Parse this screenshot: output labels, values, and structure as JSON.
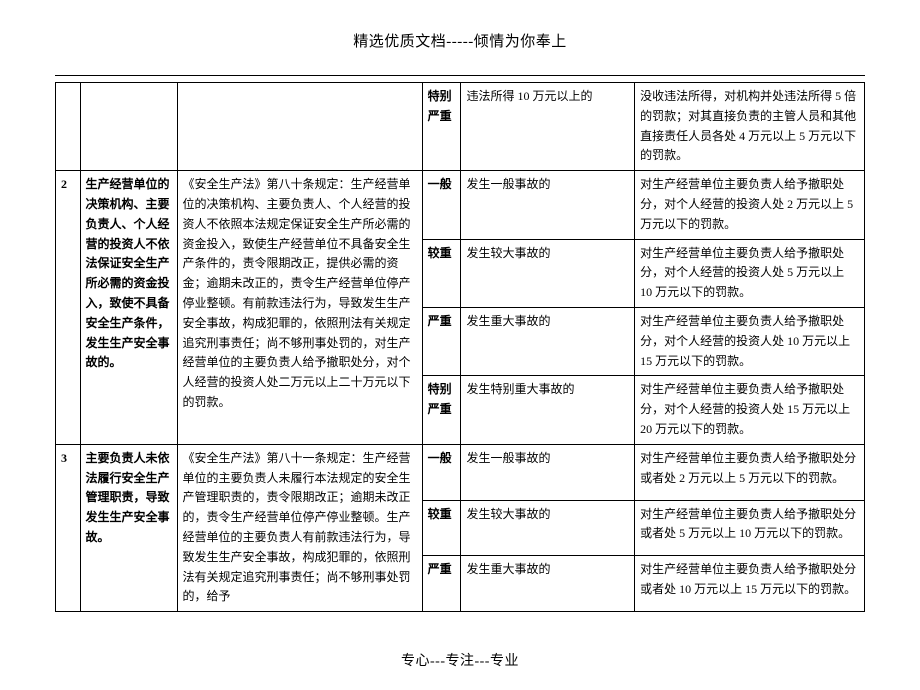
{
  "header": "精选优质文档-----倾情为你奉上",
  "footer": "专心---专注---专业",
  "table": {
    "row1": {
      "level": "特别严重",
      "cond": "违法所得 10 万元以上的",
      "res": "没收违法所得，对机构并处违法所得 5 倍的罚款；对其直接负责的主管人员和其他直接责任人员各处 4 万元以上 5 万元以下的罚款。"
    },
    "group2": {
      "idx": "2",
      "item": "生产经营单位的决策机构、主要负责人、个人经营的投资人不依法保证安全生产所必需的资金投入，致使不具备安全生产条件，发生生产安全事故的。",
      "desc": "《安全生产法》第八十条规定：生产经营单位的决策机构、主要负责人、个人经营的投资人不依照本法规定保证安全生产所必需的资金投入，致使生产经营单位不具备安全生产条件的，责令限期改正，提供必需的资金；逾期未改正的，责令生产经营单位停产停业整顿。有前款违法行为，导致发生生产安全事故，构成犯罪的，依照刑法有关规定追究刑事责任；尚不够刑事处罚的，对生产经营单位的主要负责人给予撤职处分，对个人经营的投资人处二万元以上二十万元以下的罚款。",
      "r1": {
        "level": "一般",
        "cond": "发生一般事故的",
        "res": "对生产经营单位主要负责人给予撤职处分，对个人经营的投资人处 2 万元以上 5 万元以下的罚款。"
      },
      "r2": {
        "level": "较重",
        "cond": "发生较大事故的",
        "res": "对生产经营单位主要负责人给予撤职处分，对个人经营的投资人处 5 万元以上 10 万元以下的罚款。"
      },
      "r3": {
        "level": "严重",
        "cond": "发生重大事故的",
        "res": "对生产经营单位主要负责人给予撤职处分，对个人经营的投资人处 10 万元以上 15 万元以下的罚款。"
      },
      "r4": {
        "level": "特别严重",
        "cond": "发生特别重大事故的",
        "res": "对生产经营单位主要负责人给予撤职处分，对个人经营的投资人处 15 万元以上 20 万元以下的罚款。"
      }
    },
    "group3": {
      "idx": "3",
      "item": "主要负责人未依法履行安全生产管理职责，导致发生生产安全事故。",
      "desc": "《安全生产法》第八十一条规定：生产经营单位的主要负责人未履行本法规定的安全生产管理职责的，责令限期改正；逾期未改正的，责令生产经营单位停产停业整顿。生产经营单位的主要负责人有前款违法行为，导致发生生产安全事故，构成犯罪的，依照刑法有关规定追究刑事责任；尚不够刑事处罚的，给予",
      "r1": {
        "level": "一般",
        "cond": "发生一般事故的",
        "res": "对生产经营单位主要负责人给予撤职处分或者处 2 万元以上 5 万元以下的罚款。"
      },
      "r2": {
        "level": "较重",
        "cond": "发生较大事故的",
        "res": "对生产经营单位主要负责人给予撤职处分或者处 5 万元以上 10 万元以下的罚款。"
      },
      "r3": {
        "level": "严重",
        "cond": "发生重大事故的",
        "res": "对生产经营单位主要负责人给予撤职处分或者处 10 万元以上 15 万元以下的罚款。"
      }
    }
  }
}
